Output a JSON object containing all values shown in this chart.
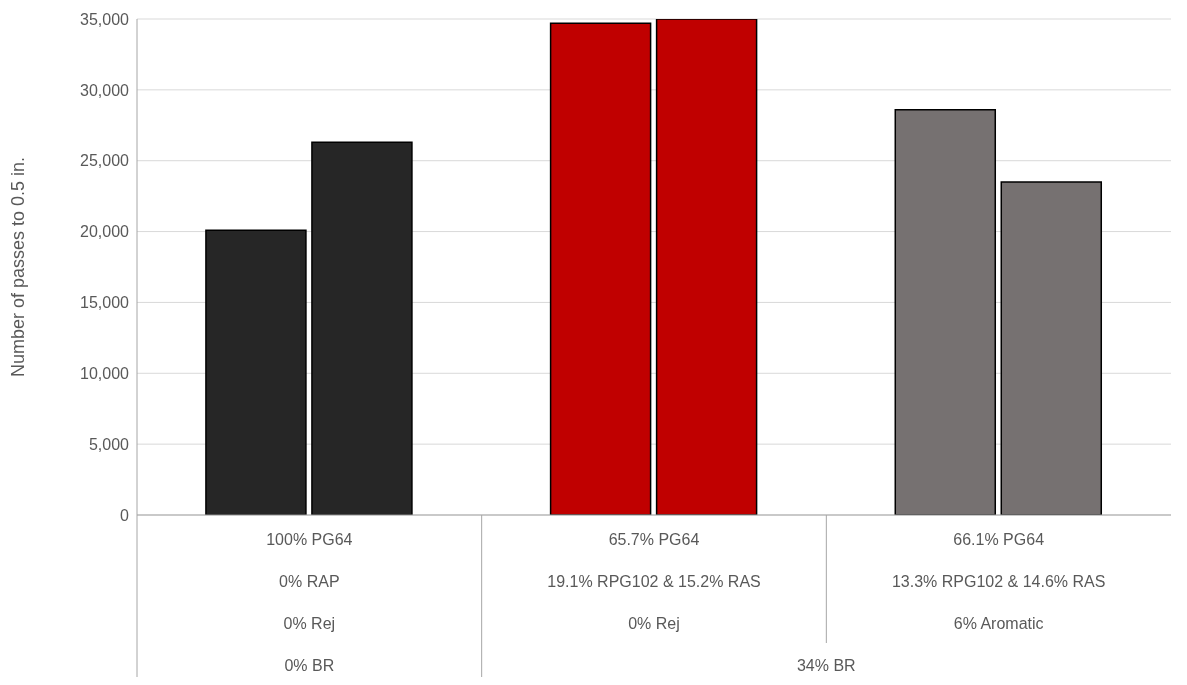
{
  "chart_data": {
    "type": "bar",
    "ylabel": "Number of passes to 0.5 in.",
    "categories": [
      "100% PG64\n0% RAP\n0% Rej",
      "65.7% PG64\n19.1% RPG102 & 15.2% RAS\n0% Rej",
      "66.1% PG64\n13.3% RPG102 & 14.6% RAS\n6% Aromatic"
    ],
    "series": [
      {
        "colors": [
          "#262626",
          "#c00000",
          "#767171"
        ],
        "values": [
          20100,
          34700,
          28600
        ]
      },
      {
        "colors": [
          "#262626",
          "#c00000",
          "#767171"
        ],
        "values": [
          26300,
          35000,
          23500
        ]
      }
    ],
    "ylim": [
      0,
      35000
    ],
    "yticks": [
      0,
      {
        "value": 5000,
        "label": "5,000"
      },
      {
        "value": 10000,
        "label": "10,000"
      },
      {
        "value": 15000,
        "label": "15,000"
      },
      {
        "value": 20000,
        "label": "20,000"
      },
      {
        "value": 25000,
        "label": "25,000"
      },
      {
        "value": 30000,
        "label": "30,000"
      },
      {
        "value": 35000,
        "label": "35,000"
      }
    ],
    "grid": "y",
    "annotations": [
      "0% BR",
      "34% BR"
    ]
  }
}
